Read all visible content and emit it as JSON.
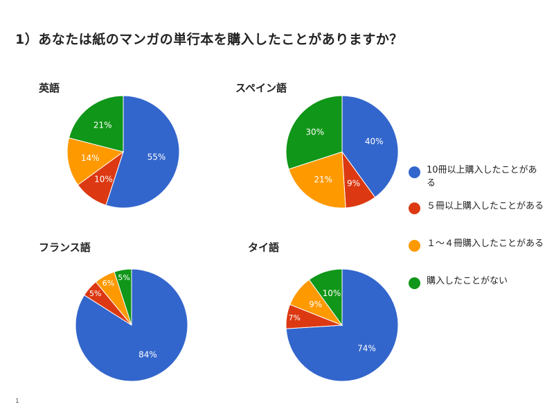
{
  "page": {
    "title": "1）あなたは紙のマンガの単行本を購入したことがありますか？",
    "page_number": "1"
  },
  "legend": [
    {
      "label": "10冊以上購入したことがある",
      "color": "#3366CC"
    },
    {
      "label": "５冊以上購入したことがある",
      "color": "#DC3912"
    },
    {
      "label": "１～４冊購入したことがある",
      "color": "#FF9900"
    },
    {
      "label": "購入したことがない",
      "color": "#109618"
    }
  ],
  "chart_data": [
    {
      "type": "pie",
      "title": "英語",
      "categories": [
        "10冊以上購入したことがある",
        "５冊以上購入したことがある",
        "１～４冊購入したことがある",
        "購入したことがない"
      ],
      "values": [
        55,
        10,
        14,
        21
      ],
      "labels": [
        "55%",
        "10%",
        "14%",
        "21%"
      ]
    },
    {
      "type": "pie",
      "title": "スペイン語",
      "categories": [
        "10冊以上購入したことがある",
        "５冊以上購入したことがある",
        "１～４冊購入したことがある",
        "購入したことがない"
      ],
      "values": [
        40,
        9,
        21,
        30
      ],
      "labels": [
        "40%",
        "9%",
        "21%",
        "30%"
      ]
    },
    {
      "type": "pie",
      "title": "フランス語",
      "categories": [
        "10冊以上購入したことがある",
        "５冊以上購入したことがある",
        "１～４冊購入したことがある",
        "購入したことがない"
      ],
      "values": [
        84,
        5,
        6,
        5
      ],
      "labels": [
        "84%",
        "5%",
        "6%",
        "5%"
      ]
    },
    {
      "type": "pie",
      "title": "タイ語",
      "categories": [
        "10冊以上購入したことがある",
        "５冊以上購入したことがある",
        "１～４冊購入したことがある",
        "購入したことがない"
      ],
      "values": [
        74,
        7,
        9,
        10
      ],
      "labels": [
        "74%",
        "7%",
        "9%",
        "10%"
      ]
    }
  ]
}
